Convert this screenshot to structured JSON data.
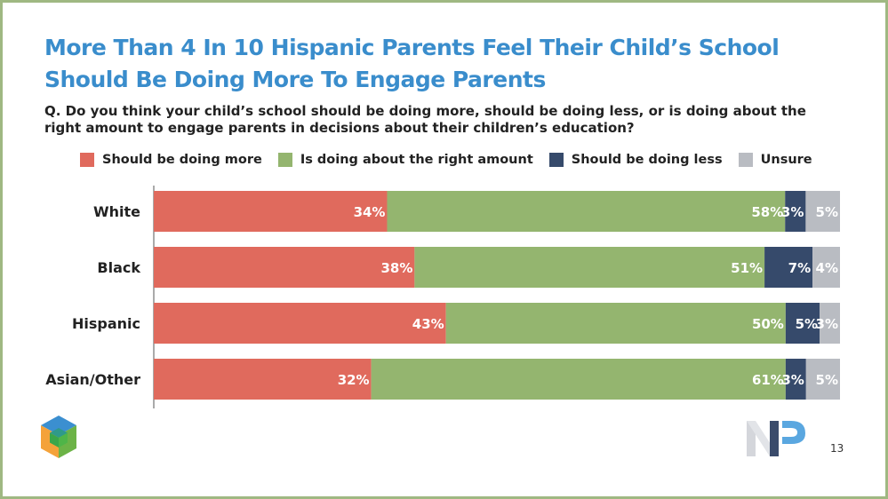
{
  "title": "More Than 4 In 10 Hispanic Parents Feel Their Child’s School Should Be Doing More To Engage Parents",
  "question": "Q. Do you think your child’s school should be doing more, should be doing less, or is doing about the right amount to engage parents in decisions about their children’s education?",
  "page_number": "13",
  "colors": {
    "title": "#3a8dcc",
    "frame": "#9fb882"
  },
  "chart_data": {
    "type": "bar",
    "orientation": "horizontal",
    "stacked": true,
    "categories": [
      "White",
      "Black",
      "Hispanic",
      "Asian/Other"
    ],
    "series": [
      {
        "name": "Should be doing more",
        "color": "#e06a5d",
        "values": [
          34,
          38,
          43,
          32
        ],
        "labels": [
          "34%",
          "38%",
          "43%",
          "32%"
        ]
      },
      {
        "name": "Is doing about the right amount",
        "color": "#94b56f",
        "values": [
          58,
          51,
          50,
          61
        ],
        "labels": [
          "58%",
          "51%",
          "50%",
          "61%"
        ]
      },
      {
        "name": "Should be doing less",
        "color": "#364a6b",
        "values": [
          3,
          7,
          5,
          3
        ],
        "labels": [
          "3%",
          "7%",
          "5%",
          "3%"
        ]
      },
      {
        "name": "Unsure",
        "color": "#b9bcc2",
        "values": [
          5,
          4,
          3,
          5
        ],
        "labels": [
          "5%",
          "4%",
          "3%",
          "5%"
        ]
      }
    ],
    "legend_position": "top",
    "grid": false
  }
}
